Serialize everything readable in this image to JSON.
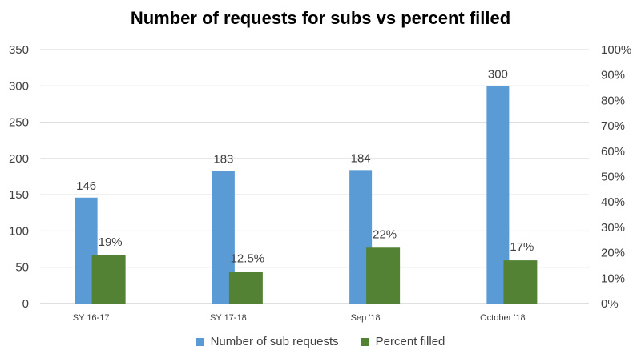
{
  "chart_data": {
    "type": "bar",
    "title": "Number of requests for subs vs percent filled",
    "categories": [
      "SY 16-17",
      "SY 17-18",
      "Sep '18",
      "October '18"
    ],
    "series": [
      {
        "name": "Number of sub requests",
        "axis": "left",
        "color": "#5B9BD5",
        "values": [
          146,
          183,
          184,
          300
        ],
        "labels": [
          "146",
          "183",
          "184",
          "300"
        ]
      },
      {
        "name": "Percent filled",
        "axis": "right",
        "color": "#548235",
        "values": [
          19,
          12.5,
          22,
          17
        ],
        "labels": [
          "19%",
          "12.5%",
          "22%",
          "17%"
        ]
      }
    ],
    "left_axis": {
      "ylim": [
        0,
        350
      ],
      "ticks": [
        "0",
        "50",
        "100",
        "150",
        "200",
        "250",
        "300",
        "350"
      ]
    },
    "right_axis": {
      "ylim": [
        0,
        100
      ],
      "ticks": [
        "0%",
        "10%",
        "20%",
        "30%",
        "40%",
        "50%",
        "60%",
        "70%",
        "80%",
        "90%",
        "100%"
      ]
    },
    "grid": true,
    "legend_position": "bottom"
  }
}
